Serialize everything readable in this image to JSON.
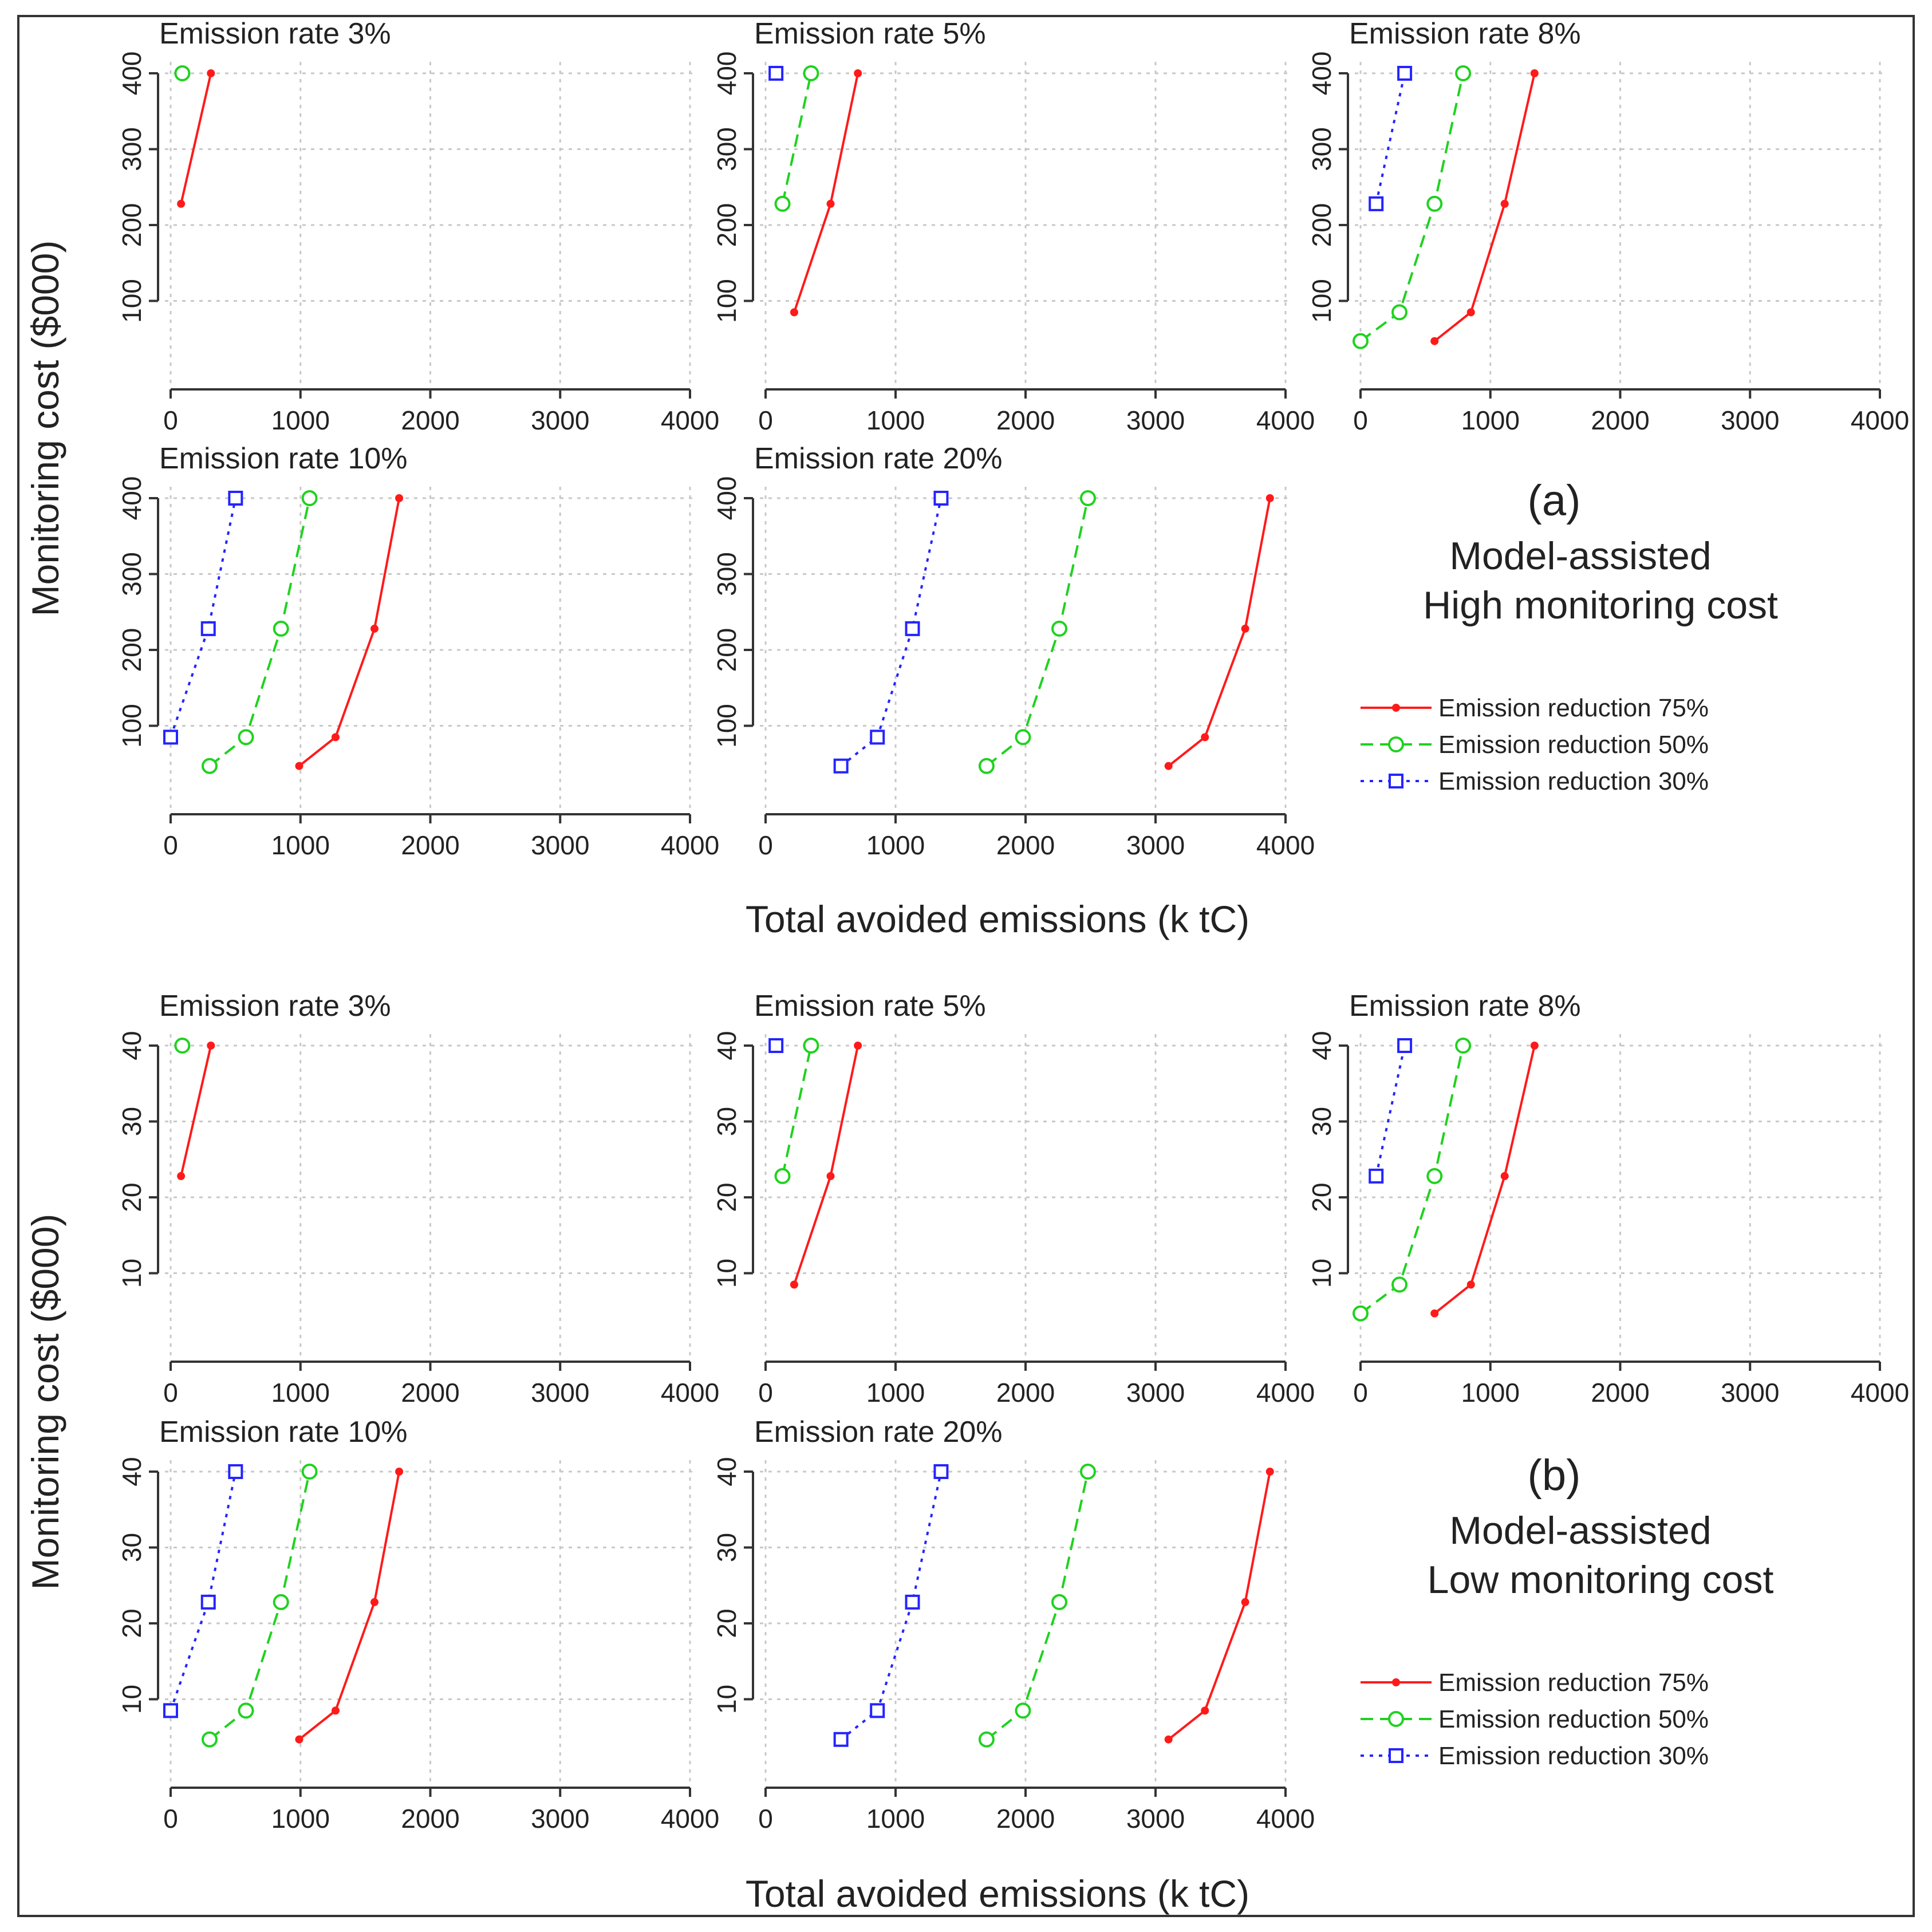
{
  "colors": {
    "red": "#ff1a1a",
    "green": "#1fd21f",
    "blue": "#2424ff",
    "axis": "#333333",
    "grid": "#c8c8c8"
  },
  "x_axis_title": "Total avoided emissions (k tC)",
  "y_axis_title": "Monitoring cost ($000)",
  "legend": [
    {
      "label": "Emission reduction 75%",
      "series": "red",
      "marker": "dot",
      "style": "solid"
    },
    {
      "label": "Emission reduction 50%",
      "series": "green",
      "marker": "circle",
      "style": "dashed"
    },
    {
      "label": "Emission reduction 30%",
      "series": "blue",
      "marker": "square",
      "style": "dotted"
    }
  ],
  "sections": [
    {
      "letter": "(a)",
      "line1": "Model-assisted",
      "line2": "High monitoring cost",
      "scale": 10
    },
    {
      "letter": "(b)",
      "line1": "Model-assisted",
      "line2": "Low monitoring cost",
      "scale": 1
    }
  ],
  "chart_data": [
    {
      "type": "line",
      "section": "(a)",
      "title": "Emission rate 3%",
      "xlabel": "Total avoided emissions (k tC)",
      "ylabel": "Monitoring cost ($000)",
      "xlim": [
        0,
        4000
      ],
      "ylim": [
        0,
        400
      ],
      "x_ticks": [
        "0",
        "1000",
        "2000",
        "3000",
        "4000"
      ],
      "y_ticks": [
        "100",
        "200",
        "300",
        "400"
      ],
      "series": [
        {
          "name": "Emission reduction 75%",
          "points": [
            [
              80,
              228
            ],
            [
              310,
              400
            ]
          ]
        },
        {
          "name": "Emission reduction 50%",
          "points": [
            [
              90,
              400
            ]
          ]
        },
        {
          "name": "Emission reduction 30%",
          "points": []
        }
      ]
    },
    {
      "type": "line",
      "section": "(a)",
      "title": "Emission rate 5%",
      "xlabel": "Total avoided emissions (k tC)",
      "ylabel": "Monitoring cost ($000)",
      "xlim": [
        0,
        4000
      ],
      "ylim": [
        0,
        400
      ],
      "x_ticks": [
        "0",
        "1000",
        "2000",
        "3000",
        "4000"
      ],
      "y_ticks": [
        "100",
        "200",
        "300",
        "400"
      ],
      "series": [
        {
          "name": "Emission reduction 75%",
          "points": [
            [
              220,
              85
            ],
            [
              500,
              228
            ],
            [
              710,
              400
            ]
          ]
        },
        {
          "name": "Emission reduction 50%",
          "points": [
            [
              130,
              228
            ],
            [
              350,
              400
            ]
          ]
        },
        {
          "name": "Emission reduction 30%",
          "points": [
            [
              80,
              400
            ]
          ]
        }
      ]
    },
    {
      "type": "line",
      "section": "(a)",
      "title": "Emission rate 8%",
      "xlabel": "Total avoided emissions (k tC)",
      "ylabel": "Monitoring cost ($000)",
      "xlim": [
        0,
        4000
      ],
      "ylim": [
        0,
        400
      ],
      "x_ticks": [
        "0",
        "1000",
        "2000",
        "3000",
        "4000"
      ],
      "y_ticks": [
        "100",
        "200",
        "300",
        "400"
      ],
      "series": [
        {
          "name": "Emission reduction 75%",
          "points": [
            [
              570,
              47
            ],
            [
              850,
              85
            ],
            [
              1110,
              228
            ],
            [
              1340,
              400
            ]
          ]
        },
        {
          "name": "Emission reduction 50%",
          "points": [
            [
              0,
              47
            ],
            [
              300,
              85
            ],
            [
              570,
              228
            ],
            [
              790,
              400
            ]
          ]
        },
        {
          "name": "Emission reduction 30%",
          "points": [
            [
              120,
              228
            ],
            [
              340,
              400
            ]
          ]
        }
      ]
    },
    {
      "type": "line",
      "section": "(a)",
      "title": "Emission rate 10%",
      "xlabel": "Total avoided emissions (k tC)",
      "ylabel": "Monitoring cost ($000)",
      "xlim": [
        0,
        4000
      ],
      "ylim": [
        0,
        400
      ],
      "x_ticks": [
        "0",
        "1000",
        "2000",
        "3000",
        "4000"
      ],
      "y_ticks": [
        "100",
        "200",
        "300",
        "400"
      ],
      "series": [
        {
          "name": "Emission reduction 75%",
          "points": [
            [
              990,
              47
            ],
            [
              1270,
              85
            ],
            [
              1570,
              228
            ],
            [
              1760,
              400
            ]
          ]
        },
        {
          "name": "Emission reduction 50%",
          "points": [
            [
              300,
              47
            ],
            [
              580,
              85
            ],
            [
              850,
              228
            ],
            [
              1070,
              400
            ]
          ]
        },
        {
          "name": "Emission reduction 30%",
          "points": [
            [
              0,
              85
            ],
            [
              290,
              228
            ],
            [
              500,
              400
            ]
          ]
        }
      ]
    },
    {
      "type": "line",
      "section": "(a)",
      "title": "Emission rate 20%",
      "xlabel": "Total avoided emissions (k tC)",
      "ylabel": "Monitoring cost ($000)",
      "xlim": [
        0,
        4000
      ],
      "ylim": [
        0,
        400
      ],
      "x_ticks": [
        "0",
        "1000",
        "2000",
        "3000",
        "4000"
      ],
      "y_ticks": [
        "100",
        "200",
        "300",
        "400"
      ],
      "series": [
        {
          "name": "Emission reduction 75%",
          "points": [
            [
              3100,
              47
            ],
            [
              3380,
              85
            ],
            [
              3690,
              228
            ],
            [
              3880,
              400
            ]
          ]
        },
        {
          "name": "Emission reduction 50%",
          "points": [
            [
              1700,
              47
            ],
            [
              1980,
              85
            ],
            [
              2260,
              228
            ],
            [
              2480,
              400
            ]
          ]
        },
        {
          "name": "Emission reduction 30%",
          "points": [
            [
              580,
              47
            ],
            [
              860,
              85
            ],
            [
              1130,
              228
            ],
            [
              1350,
              400
            ]
          ]
        }
      ]
    },
    {
      "type": "line",
      "section": "(b)",
      "title": "Emission rate 3%",
      "xlabel": "Total avoided emissions (k tC)",
      "ylabel": "Monitoring cost ($000)",
      "xlim": [
        0,
        4000
      ],
      "ylim": [
        0,
        40
      ],
      "x_ticks": [
        "0",
        "1000",
        "2000",
        "3000",
        "4000"
      ],
      "y_ticks": [
        "10",
        "20",
        "30",
        "40"
      ],
      "series": [
        {
          "name": "Emission reduction 75%",
          "points": [
            [
              80,
              22.8
            ],
            [
              310,
              40
            ]
          ]
        },
        {
          "name": "Emission reduction 50%",
          "points": [
            [
              90,
              40
            ]
          ]
        },
        {
          "name": "Emission reduction 30%",
          "points": []
        }
      ]
    },
    {
      "type": "line",
      "section": "(b)",
      "title": "Emission rate 5%",
      "xlabel": "Total avoided emissions (k tC)",
      "ylabel": "Monitoring cost ($000)",
      "xlim": [
        0,
        4000
      ],
      "ylim": [
        0,
        40
      ],
      "x_ticks": [
        "0",
        "1000",
        "2000",
        "3000",
        "4000"
      ],
      "y_ticks": [
        "10",
        "20",
        "30",
        "40"
      ],
      "series": [
        {
          "name": "Emission reduction 75%",
          "points": [
            [
              220,
              8.5
            ],
            [
              500,
              22.8
            ],
            [
              710,
              40
            ]
          ]
        },
        {
          "name": "Emission reduction 50%",
          "points": [
            [
              130,
              22.8
            ],
            [
              350,
              40
            ]
          ]
        },
        {
          "name": "Emission reduction 30%",
          "points": [
            [
              80,
              40
            ]
          ]
        }
      ]
    },
    {
      "type": "line",
      "section": "(b)",
      "title": "Emission rate 8%",
      "xlabel": "Total avoided emissions (k tC)",
      "ylabel": "Monitoring cost ($000)",
      "xlim": [
        0,
        4000
      ],
      "ylim": [
        0,
        40
      ],
      "x_ticks": [
        "0",
        "1000",
        "2000",
        "3000",
        "4000"
      ],
      "y_ticks": [
        "10",
        "20",
        "30",
        "40"
      ],
      "series": [
        {
          "name": "Emission reduction 75%",
          "points": [
            [
              570,
              4.7
            ],
            [
              850,
              8.5
            ],
            [
              1110,
              22.8
            ],
            [
              1340,
              40
            ]
          ]
        },
        {
          "name": "Emission reduction 50%",
          "points": [
            [
              0,
              4.7
            ],
            [
              300,
              8.5
            ],
            [
              570,
              22.8
            ],
            [
              790,
              40
            ]
          ]
        },
        {
          "name": "Emission reduction 30%",
          "points": [
            [
              120,
              22.8
            ],
            [
              340,
              40
            ]
          ]
        }
      ]
    },
    {
      "type": "line",
      "section": "(b)",
      "title": "Emission rate 10%",
      "xlabel": "Total avoided emissions (k tC)",
      "ylabel": "Monitoring cost ($000)",
      "xlim": [
        0,
        4000
      ],
      "ylim": [
        0,
        40
      ],
      "x_ticks": [
        "0",
        "1000",
        "2000",
        "3000",
        "4000"
      ],
      "y_ticks": [
        "10",
        "20",
        "30",
        "40"
      ],
      "series": [
        {
          "name": "Emission reduction 75%",
          "points": [
            [
              990,
              4.7
            ],
            [
              1270,
              8.5
            ],
            [
              1570,
              22.8
            ],
            [
              1760,
              40
            ]
          ]
        },
        {
          "name": "Emission reduction 50%",
          "points": [
            [
              300,
              4.7
            ],
            [
              580,
              8.5
            ],
            [
              850,
              22.8
            ],
            [
              1070,
              40
            ]
          ]
        },
        {
          "name": "Emission reduction 30%",
          "points": [
            [
              0,
              8.5
            ],
            [
              290,
              22.8
            ],
            [
              500,
              40
            ]
          ]
        }
      ]
    },
    {
      "type": "line",
      "section": "(b)",
      "title": "Emission rate 20%",
      "xlabel": "Total avoided emissions (k tC)",
      "ylabel": "Monitoring cost ($000)",
      "xlim": [
        0,
        4000
      ],
      "ylim": [
        0,
        40
      ],
      "x_ticks": [
        "0",
        "1000",
        "2000",
        "3000",
        "4000"
      ],
      "y_ticks": [
        "10",
        "20",
        "30",
        "40"
      ],
      "series": [
        {
          "name": "Emission reduction 75%",
          "points": [
            [
              3100,
              4.7
            ],
            [
              3380,
              8.5
            ],
            [
              3690,
              22.8
            ],
            [
              3880,
              40
            ]
          ]
        },
        {
          "name": "Emission reduction 50%",
          "points": [
            [
              1700,
              4.7
            ],
            [
              1980,
              8.5
            ],
            [
              2260,
              22.8
            ],
            [
              2480,
              40
            ]
          ]
        },
        {
          "name": "Emission reduction 30%",
          "points": [
            [
              580,
              4.7
            ],
            [
              860,
              8.5
            ],
            [
              1130,
              22.8
            ],
            [
              1350,
              40
            ]
          ]
        }
      ]
    }
  ]
}
